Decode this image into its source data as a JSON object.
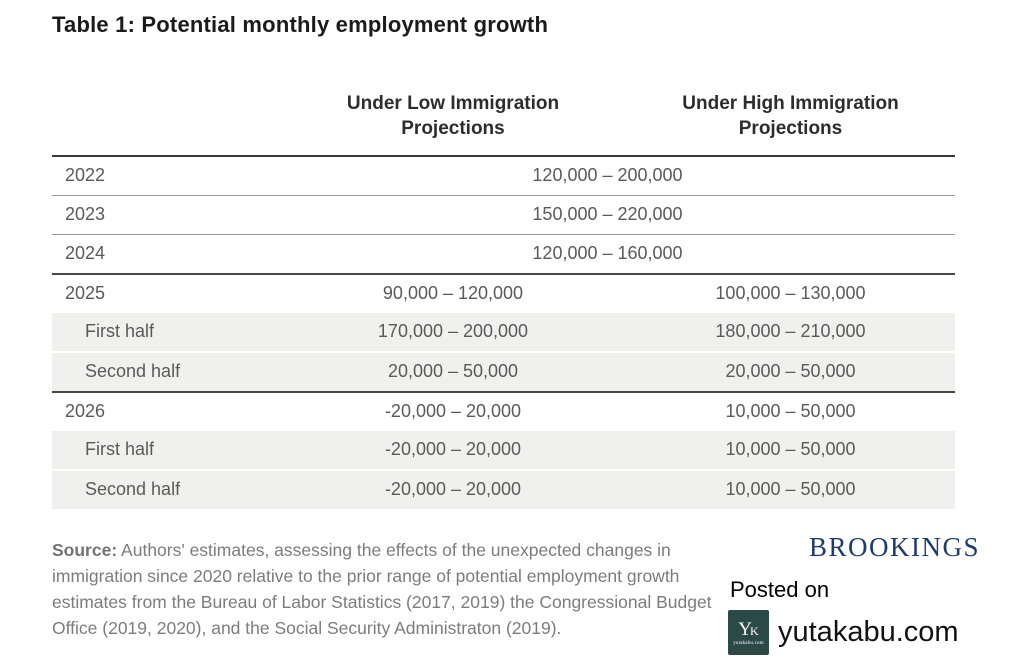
{
  "colors": {
    "brookings_blue": "#1e3b6d",
    "logo_teal": "#2b4a45",
    "row_stripe": "#f0f0ef",
    "cell_text_gray": "#5a5a5c",
    "source_text_gray": "#7c7c7c"
  },
  "chart_data": {
    "type": "table",
    "title": "Table 1: Potential monthly employment growth",
    "columns": {
      "label": "",
      "low": "Under Low Immigration\nProjections",
      "high": "Under High Immigration\nProjections"
    },
    "rows": [
      {
        "label": "2022",
        "merged": "120,000 – 200,000"
      },
      {
        "label": "2023",
        "merged": "150,000 – 220,000"
      },
      {
        "label": "2024",
        "merged": "120,000 – 160,000"
      },
      {
        "label": "2025",
        "low": "90,000 – 120,000",
        "high": "100,000 – 130,000"
      },
      {
        "label": "First half",
        "low": "170,000 – 200,000",
        "high": "180,000 – 210,000"
      },
      {
        "label": "Second half",
        "low": "20,000 – 50,000",
        "high": "20,000 – 50,000"
      },
      {
        "label": "2026",
        "low": "-20,000 – 20,000",
        "high": "10,000 – 50,000"
      },
      {
        "label": "First half",
        "low": "-20,000 – 20,000",
        "high": "10,000 – 50,000"
      },
      {
        "label": "Second half",
        "low": "-20,000 – 20,000",
        "high": "10,000 – 50,000"
      }
    ]
  },
  "footer": {
    "source_label": "Source:",
    "source_text": " Authors' estimates, assessing the effects of the unexpected changes in immigration since 2020 relative to the prior range of potential employment growth estimates from the Bureau of Labor Statistics (2017, 2019) the Congressional Budget Office (2019, 2020), and the Social Security Administraton (2019).",
    "brookings_logo": "BROOKINGS",
    "posted_on": "Posted on",
    "site_name": "yutakabu.com",
    "site_logo": {
      "monogram_y": "Y",
      "monogram_k": "K",
      "caption": "yutakabu.com"
    }
  }
}
